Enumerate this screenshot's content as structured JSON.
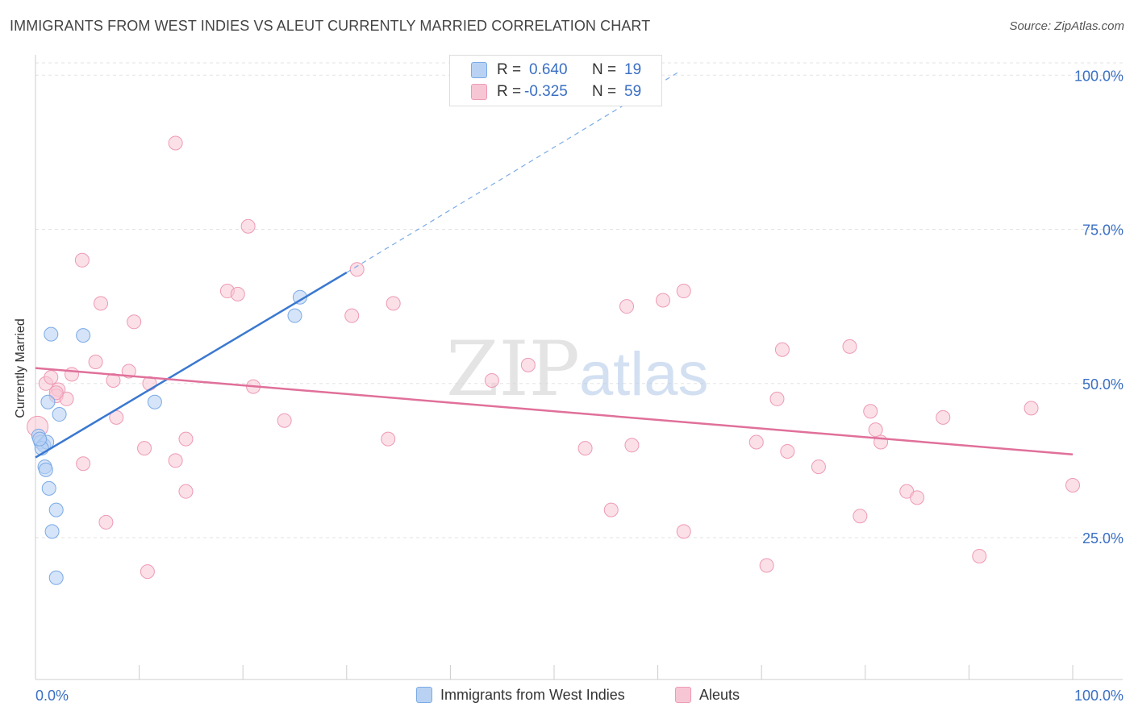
{
  "header": {
    "title": "IMMIGRANTS FROM WEST INDIES VS ALEUT CURRENTLY MARRIED CORRELATION CHART",
    "source": "Source: ZipAtlas.com"
  },
  "watermark": {
    "zip": "ZIP",
    "atlas": "atlas"
  },
  "legend": {
    "r_label": "R =",
    "n_label": "N =",
    "rows": [
      {
        "r": "0.640",
        "n": "19",
        "color": "#7aaae6",
        "fill": "#b9d2f3"
      },
      {
        "r": "-0.325",
        "n": "59",
        "color": "#ee9ab4",
        "fill": "#f7c6d5"
      }
    ]
  },
  "colors": {
    "blue_line": "#3a78d0",
    "pink_line": "#e0709a",
    "tick_label": "#3a6fc4",
    "grid": "#e3e3e3"
  },
  "chart_data": {
    "type": "scatter",
    "title": "IMMIGRANTS FROM WEST INDIES VS ALEUT CURRENTLY MARRIED CORRELATION CHART",
    "xlabel": "",
    "ylabel": "Currently Married",
    "xlim": [
      0,
      100
    ],
    "ylim": [
      2,
      102
    ],
    "x_tick_labels": [
      "0.0%",
      "100.0%"
    ],
    "y_ticks": [
      25,
      50,
      75,
      100
    ],
    "y_tick_labels": [
      "25.0%",
      "50.0%",
      "75.0%",
      "100.0%"
    ],
    "grid": true,
    "legend_placement": "top-center",
    "series": [
      {
        "name": "Immigrants from West Indies",
        "r": 0.64,
        "n": 19,
        "points": [
          [
            0.3,
            41.5
          ],
          [
            0.5,
            40.5
          ],
          [
            0.8,
            40.0
          ],
          [
            1.1,
            40.5
          ],
          [
            0.6,
            39.5
          ],
          [
            0.9,
            36.5
          ],
          [
            1.0,
            36.0
          ],
          [
            1.3,
            33.0
          ],
          [
            2.0,
            29.5
          ],
          [
            1.6,
            26.0
          ],
          [
            2.0,
            18.5
          ],
          [
            1.2,
            47.0
          ],
          [
            2.3,
            45.0
          ],
          [
            1.5,
            58.0
          ],
          [
            4.6,
            57.8
          ],
          [
            11.5,
            47.0
          ],
          [
            25.0,
            61.0
          ],
          [
            25.5,
            64.0
          ],
          [
            0.4,
            41.0
          ]
        ],
        "trend": {
          "x0": 0,
          "y0": 38.0,
          "x1": 30,
          "y1": 68.0,
          "dash_to_x": 62,
          "dash_to_y": 100.5
        }
      },
      {
        "name": "Aleuts",
        "r": -0.325,
        "n": 59,
        "points": [
          [
            0.2,
            43.0
          ],
          [
            1.0,
            50.0
          ],
          [
            1.5,
            51.0
          ],
          [
            2.2,
            49.0
          ],
          [
            3.5,
            51.5
          ],
          [
            2.0,
            48.0
          ],
          [
            3.0,
            47.5
          ],
          [
            4.5,
            70.0
          ],
          [
            6.3,
            63.0
          ],
          [
            5.8,
            53.5
          ],
          [
            7.5,
            50.5
          ],
          [
            9.0,
            52.0
          ],
          [
            9.5,
            60.0
          ],
          [
            7.8,
            44.5
          ],
          [
            11.0,
            50.0
          ],
          [
            13.5,
            89.0
          ],
          [
            20.5,
            75.5
          ],
          [
            18.5,
            65.0
          ],
          [
            19.5,
            64.5
          ],
          [
            21.0,
            49.5
          ],
          [
            14.5,
            41.0
          ],
          [
            10.5,
            39.5
          ],
          [
            13.5,
            37.5
          ],
          [
            14.5,
            32.5
          ],
          [
            4.6,
            37.0
          ],
          [
            6.8,
            27.5
          ],
          [
            10.8,
            19.5
          ],
          [
            24.0,
            44.0
          ],
          [
            30.5,
            61.0
          ],
          [
            31.0,
            68.5
          ],
          [
            34.5,
            63.0
          ],
          [
            34.0,
            41.0
          ],
          [
            44.0,
            50.5
          ],
          [
            47.5,
            53.0
          ],
          [
            53.0,
            39.5
          ],
          [
            55.5,
            29.5
          ],
          [
            57.0,
            62.5
          ],
          [
            57.5,
            40.0
          ],
          [
            60.5,
            63.5
          ],
          [
            62.5,
            65.0
          ],
          [
            62.5,
            26.0
          ],
          [
            69.5,
            40.5
          ],
          [
            70.5,
            20.5
          ],
          [
            71.5,
            47.5
          ],
          [
            72.0,
            55.5
          ],
          [
            72.5,
            39.0
          ],
          [
            75.5,
            36.5
          ],
          [
            78.5,
            56.0
          ],
          [
            79.5,
            28.5
          ],
          [
            80.5,
            45.5
          ],
          [
            81.5,
            40.5
          ],
          [
            81.0,
            42.5
          ],
          [
            84.0,
            32.5
          ],
          [
            85.0,
            31.5
          ],
          [
            87.5,
            44.5
          ],
          [
            91.0,
            22.0
          ],
          [
            96.0,
            46.0
          ],
          [
            100.0,
            33.5
          ],
          [
            2.0,
            48.5
          ]
        ],
        "trend": {
          "x0": 0,
          "y0": 52.5,
          "x1": 100,
          "y1": 38.5
        }
      }
    ]
  }
}
